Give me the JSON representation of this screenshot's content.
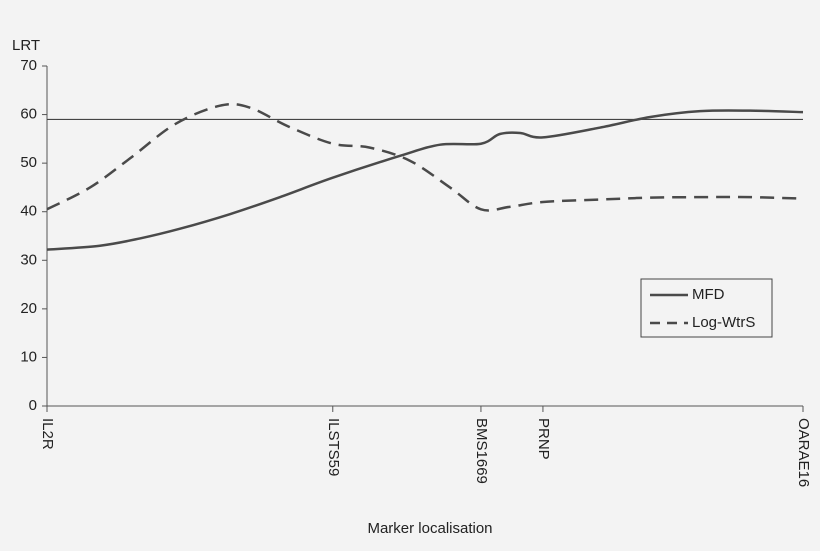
{
  "chart_data": {
    "type": "line",
    "y_label": "LRT",
    "x_label": "Marker localisation",
    "xlim": [
      0,
      100
    ],
    "xticks": [
      {
        "value": 0,
        "label": "IL2R"
      },
      {
        "value": 37.8,
        "label": "ILSTS59"
      },
      {
        "value": 57.4,
        "label": "BMS1669"
      },
      {
        "value": 65.6,
        "label": "PRNP"
      },
      {
        "value": 100,
        "label": "OARAE16"
      }
    ],
    "ylim": [
      0,
      70
    ],
    "yticks": [
      0,
      10,
      20,
      30,
      40,
      50,
      60,
      70
    ],
    "threshold": 59,
    "legend": "right",
    "series": [
      {
        "name": "MFD",
        "color": "#4a4a4a",
        "line_style": "solid",
        "x": [
          0,
          7,
          12.3,
          17.6,
          24.2,
          30.8,
          37.8,
          46.7,
          52,
          57.4,
          59.9,
          62.6,
          65.6,
          73.1,
          79.8,
          86.4,
          93,
          100
        ],
        "values": [
          32.2,
          33,
          34.5,
          36.5,
          39.5,
          43,
          47,
          51.5,
          53.8,
          54,
          56,
          56.2,
          55.3,
          57.3,
          59.5,
          60.7,
          60.8,
          60.5
        ]
      },
      {
        "name": "Log-WtrS",
        "color": "#4a4a4a",
        "line_style": "dashed",
        "x": [
          0,
          5.7,
          11,
          16.9,
          22.8,
          26.7,
          32,
          37.8,
          42.7,
          48,
          53.3,
          57.4,
          61.2,
          65.6,
          73.1,
          79.8,
          86.4,
          93,
          100
        ],
        "values": [
          40.5,
          45,
          51,
          58,
          61.8,
          61.5,
          57.5,
          54,
          53.2,
          50.5,
          45,
          40.5,
          41,
          42,
          42.5,
          42.9,
          43,
          43,
          42.7
        ]
      }
    ]
  }
}
